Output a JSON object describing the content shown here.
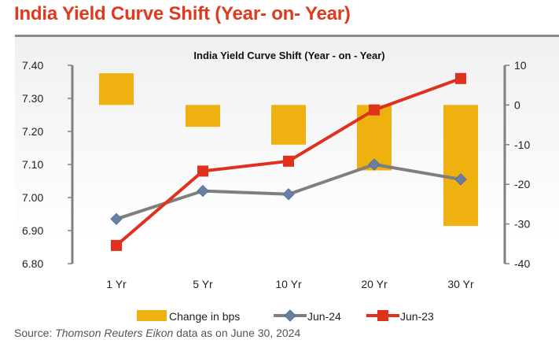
{
  "page": {
    "title": "India Yield Curve Shift (Year- on- Year)",
    "source_prefix": "Source: ",
    "source_italic": "Thomson Reuters Eikon",
    "source_suffix": " data as on June 30, 2024"
  },
  "chart_data": {
    "type": "bar+line",
    "title": "India Yield Curve Shift (Year - on - Year)",
    "categories": [
      "1 Yr",
      "5 Yr",
      "10 Yr",
      "20 Yr",
      "30 Yr"
    ],
    "left_axis": {
      "ylim": [
        6.8,
        7.4
      ],
      "ticks": [
        7.4,
        7.3,
        7.2,
        7.1,
        7.0,
        6.9,
        6.8
      ],
      "tick_labels": [
        "7.40",
        "7.30",
        "7.20",
        "7.10",
        "7.00",
        "6.90",
        "6.80"
      ]
    },
    "right_axis": {
      "ylim": [
        -40,
        10
      ],
      "ticks": [
        10,
        0,
        -10,
        -20,
        -30,
        -40
      ],
      "tick_labels": [
        "10",
        "0",
        "-10",
        "-20",
        "-30",
        "-40"
      ]
    },
    "series": [
      {
        "name": "Change in bps",
        "type": "bar",
        "axis": "right",
        "color": "#eeb10f",
        "values": [
          8,
          -5.5,
          -10,
          -16.5,
          -30.5
        ]
      },
      {
        "name": "Jun-24",
        "type": "line",
        "axis": "left",
        "color": "#7f7f7f",
        "marker": "diamond",
        "marker_color": "#6b7f9e",
        "values": [
          6.935,
          7.02,
          7.01,
          7.1,
          7.055
        ]
      },
      {
        "name": "Jun-23",
        "type": "line",
        "axis": "left",
        "color": "#e0301e",
        "marker": "square",
        "marker_color": "#e0301e",
        "values": [
          6.855,
          7.08,
          7.11,
          7.265,
          7.36
        ]
      }
    ],
    "legend": {
      "position": "bottom",
      "entries": [
        "Change in bps",
        "Jun-24",
        "Jun-23"
      ]
    },
    "grid": false
  }
}
